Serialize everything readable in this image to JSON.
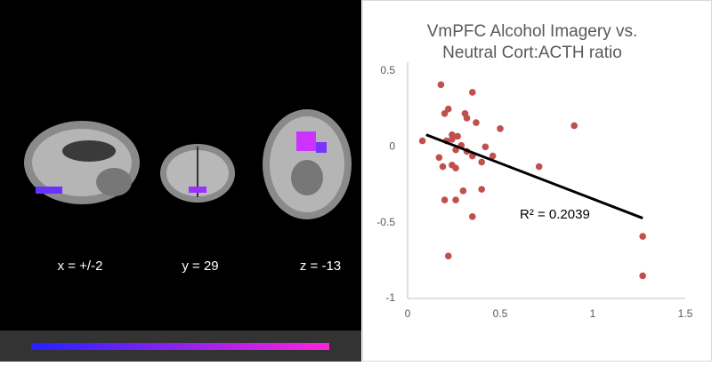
{
  "panel_labels": [
    "x = +/-2",
    "y = 29",
    "z = -13"
  ],
  "chart_data": {
    "type": "scatter",
    "title": [
      "VmPFC Alcohol Imagery vs.",
      "Neutral Cort:ACTH ratio"
    ],
    "series": [
      {
        "color": "#c0504d",
        "x": [
          0.18,
          0.35,
          0.2,
          0.22,
          0.31,
          0.32,
          0.37,
          0.08,
          0.5,
          0.9,
          0.24,
          0.27,
          0.24,
          0.21,
          0.29,
          0.42,
          0.17,
          0.26,
          0.32,
          0.35,
          0.46,
          0.4,
          0.19,
          0.24,
          0.26,
          0.71,
          0.3,
          0.4,
          0.2,
          0.26,
          0.35,
          0.22,
          1.27,
          1.27
        ],
        "values": [
          0.41,
          0.36,
          0.22,
          0.25,
          0.22,
          0.19,
          0.16,
          0.04,
          0.12,
          0.14,
          0.08,
          0.07,
          0.05,
          0.04,
          0.01,
          0.0,
          -0.07,
          -0.02,
          -0.03,
          -0.06,
          -0.06,
          -0.1,
          -0.13,
          -0.12,
          -0.14,
          -0.13,
          -0.29,
          -0.28,
          -0.35,
          -0.35,
          -0.46,
          -0.72,
          -0.59,
          -0.85
        ]
      }
    ],
    "trendline": {
      "x": [
        0.1,
        1.27
      ],
      "values": [
        0.08,
        -0.47
      ]
    },
    "annotation": "R² = 0.2039",
    "xlim": [
      0,
      1.5
    ],
    "xticks": [
      0,
      0.5,
      1,
      1.5
    ],
    "ylim": [
      -1,
      0.5
    ],
    "yticks": [
      0.5,
      0,
      -0.5,
      -1
    ]
  }
}
